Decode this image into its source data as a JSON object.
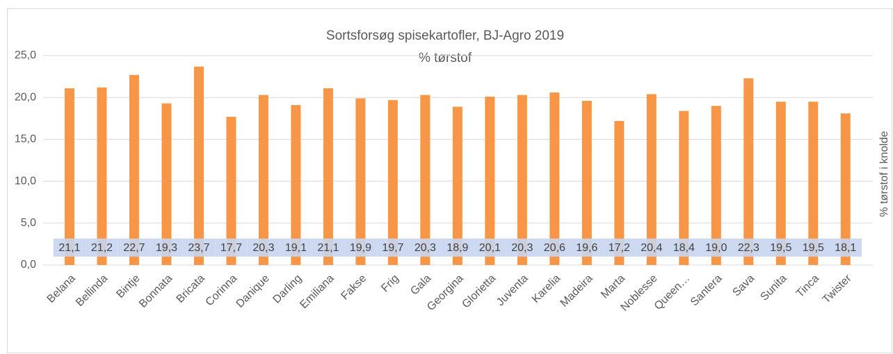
{
  "chart_data": {
    "type": "bar",
    "title": "Sortsforsøg spisekartofler, BJ-Agro 2019",
    "subtitle": "% tørstof",
    "y_label": "% tørstof i knolde",
    "categories": [
      "Belana",
      "Bellinda",
      "Bintje",
      "Bonnata",
      "Bricata",
      "Corinna",
      "Danique",
      "Darling",
      "Emiliana",
      "Fakse",
      "Frig",
      "Gala",
      "Georgina",
      "Glorietta",
      "Juventa",
      "Karelia",
      "Madeira",
      "Marta",
      "Noblesse",
      "Queen…",
      "Santera",
      "Sava",
      "Sunita",
      "Tinca",
      "Twister"
    ],
    "values": [
      21.1,
      21.2,
      22.7,
      19.3,
      23.7,
      17.7,
      20.3,
      19.1,
      21.1,
      19.9,
      19.7,
      20.3,
      18.9,
      20.1,
      20.3,
      20.6,
      19.6,
      17.2,
      20.4,
      18.4,
      19.0,
      22.3,
      19.5,
      19.5,
      18.1
    ],
    "value_labels": [
      "21,1",
      "21,2",
      "22,7",
      "19,3",
      "23,7",
      "17,7",
      "20,3",
      "19,1",
      "21,1",
      "19,9",
      "19,7",
      "20,3",
      "18,9",
      "20,1",
      "20,3",
      "20,6",
      "19,6",
      "17,2",
      "20,4",
      "18,4",
      "19,0",
      "22,3",
      "19,5",
      "19,5",
      "18,1"
    ],
    "color": "#f79646",
    "ylim": [
      0,
      25
    ],
    "yticks": [
      {
        "value": 0,
        "label": "0,0"
      },
      {
        "value": 5,
        "label": "5,0"
      },
      {
        "value": 10,
        "label": "10,0"
      },
      {
        "value": 15,
        "label": "15,0"
      },
      {
        "value": 20,
        "label": "20,0"
      },
      {
        "value": 25,
        "label": "25,0"
      }
    ],
    "grid": true
  }
}
